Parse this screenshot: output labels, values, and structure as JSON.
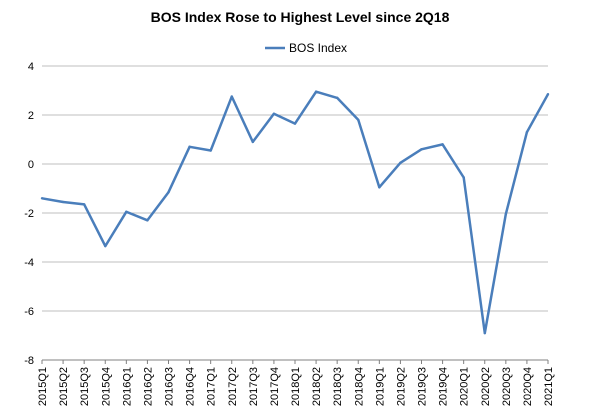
{
  "chart_data": {
    "type": "line",
    "title": "BOS Index Rose to Highest Level since 2Q18",
    "xlabel": "",
    "ylabel": "",
    "ylim": [
      -8,
      4
    ],
    "y_ticks": [
      "4",
      "2",
      "0",
      "-2",
      "-4",
      "-6",
      "-8"
    ],
    "grid": true,
    "legend_position": "top-center",
    "categories": [
      "2015Q1",
      "2015Q2",
      "2015Q3",
      "2015Q4",
      "2016Q1",
      "2016Q2",
      "2016Q3",
      "2016Q4",
      "2017Q1",
      "2017Q2",
      "2017Q3",
      "2017Q4",
      "2018Q1",
      "2018Q2",
      "2018Q3",
      "2018Q4",
      "2019Q1",
      "2019Q2",
      "2019Q3",
      "2019Q4",
      "2020Q1",
      "2020Q2",
      "2020Q3",
      "2020Q4",
      "2021Q1"
    ],
    "series": [
      {
        "name": "BOS Index",
        "color": "#4a7ebb",
        "values": [
          -1.4,
          -1.55,
          -1.65,
          -3.35,
          -1.95,
          -2.3,
          -1.15,
          0.7,
          0.55,
          2.75,
          0.9,
          2.05,
          1.65,
          2.95,
          2.7,
          1.8,
          -0.95,
          0.05,
          0.6,
          0.8,
          -0.55,
          -6.9,
          -2.05,
          1.3,
          2.85
        ]
      }
    ]
  }
}
